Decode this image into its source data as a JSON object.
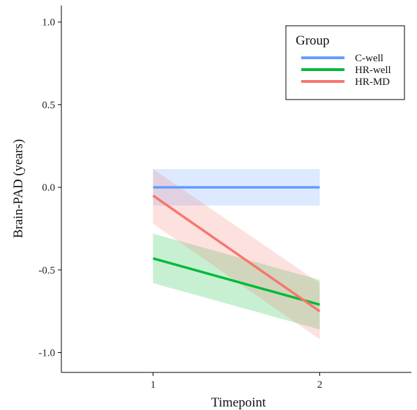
{
  "chart_data": {
    "type": "line",
    "xlabel": "Timepoint",
    "ylabel": "Brain-PAD (years)",
    "x": [
      1,
      2
    ],
    "xlim": [
      0.45,
      2.55
    ],
    "ylim": [
      -1.12,
      1.1
    ],
    "x_ticks": [
      1,
      2
    ],
    "x_tick_labels": [
      "1",
      "2"
    ],
    "y_ticks": [
      1.0,
      0.5,
      0.0,
      -0.5,
      -1.0
    ],
    "y_tick_labels": [
      "1.0",
      "0.5",
      "0.0",
      "-0.5",
      "-1.0"
    ],
    "grid": false,
    "legend": {
      "title": "Group",
      "position": "top-right"
    },
    "series": [
      {
        "name": "C-well",
        "color": "#619CFF",
        "values": [
          0.0,
          0.0
        ],
        "lower": [
          -0.11,
          -0.11
        ],
        "upper": [
          0.11,
          0.11
        ]
      },
      {
        "name": "HR-well",
        "color": "#00BA38",
        "values": [
          -0.43,
          -0.71
        ],
        "lower": [
          -0.58,
          -0.86
        ],
        "upper": [
          -0.28,
          -0.56
        ]
      },
      {
        "name": "HR-MD",
        "color": "#F8766D",
        "values": [
          -0.05,
          -0.75
        ],
        "lower": [
          -0.22,
          -0.92
        ],
        "upper": [
          0.11,
          -0.58
        ]
      }
    ]
  }
}
